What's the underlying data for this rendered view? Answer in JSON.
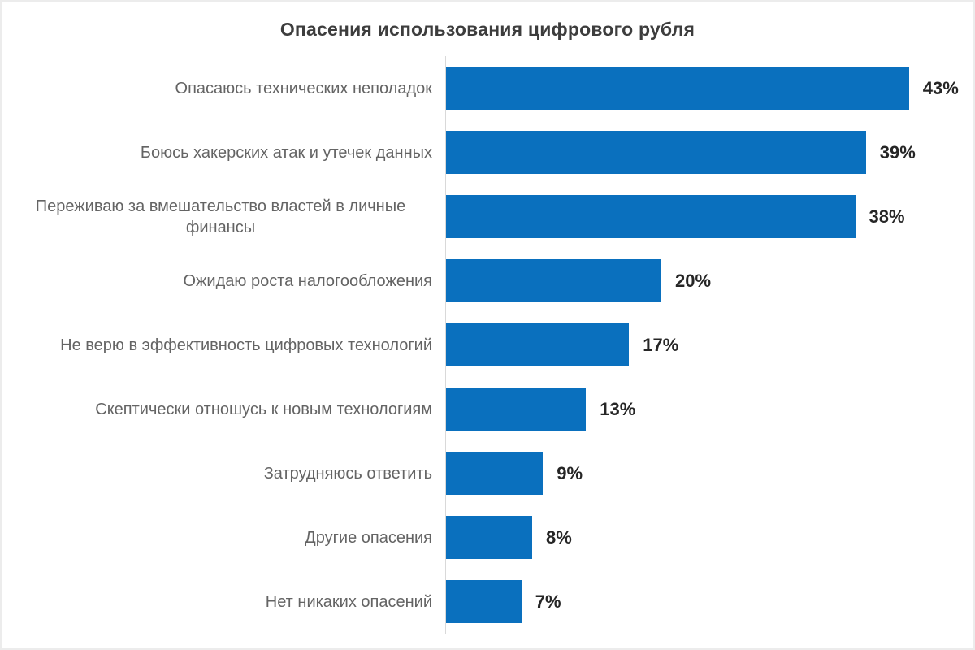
{
  "colors": {
    "bar": "#0a70be",
    "title": "#3d3d3d",
    "category_label": "#646464",
    "value_label": "#262626",
    "axis_line": "#d9d9d9",
    "frame_border": "#ececec",
    "page_bg": "#ffffff"
  },
  "chart_data": {
    "type": "bar",
    "orientation": "horizontal",
    "title": "Опасения использования цифрового рубля",
    "categories": [
      "Опасаюсь технических неполадок",
      "Боюсь хакерских атак и утечек данных",
      "Переживаю за вмешательство властей в личные финансы",
      "Ожидаю роста налогообложения",
      "Не верю в эффективность цифровых технологий",
      "Скептически отношусь к новым технологиям",
      "Затрудняюсь ответить",
      "Другие опасения",
      "Нет никаких опасений"
    ],
    "values": [
      43,
      39,
      38,
      20,
      17,
      13,
      9,
      8,
      7
    ],
    "value_labels": [
      "43%",
      "39%",
      "38%",
      "20%",
      "17%",
      "13%",
      "9%",
      "8%",
      "7%"
    ],
    "unit": "%",
    "xlim": [
      0,
      45
    ],
    "grid": false,
    "legend": false,
    "sort": "descending",
    "value_label_position": "outside-end"
  }
}
